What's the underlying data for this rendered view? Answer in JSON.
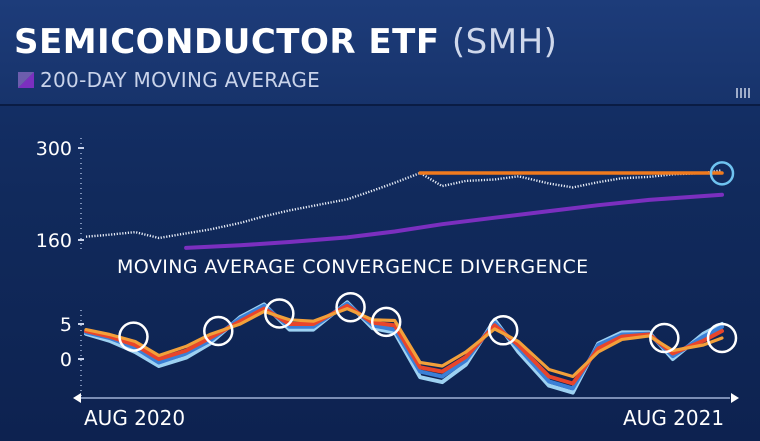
{
  "header": {
    "title": "SEMICONDUCTOR ETF",
    "ticker": "(SMH)",
    "legend_label": "200-DAY MOVING AVERAGE",
    "legend_color": "#7b2fbf"
  },
  "colors": {
    "price": "#e9eef8",
    "moving_average": "#7b2fbf",
    "resistance": "#f07a1e",
    "macd_orange": "#f2a03a",
    "macd_red": "#e8452b",
    "macd_blue": "#3b7fd6",
    "macd_lightblue": "#9dd1f2",
    "circles": "#ffffff"
  },
  "chart_data": [
    {
      "type": "line",
      "panel": "price",
      "x_range": [
        "AUG 2020",
        "AUG 2021"
      ],
      "ylim": [
        135,
        305
      ],
      "y_ticks": [
        "300",
        "160"
      ],
      "y_tick_values": [
        300,
        160
      ],
      "series": [
        {
          "key": "price",
          "style": "dotted",
          "x": [
            "2020-08-03",
            "2020-08-17",
            "2020-09-01",
            "2020-09-15",
            "2020-10-01",
            "2020-10-15",
            "2020-11-02",
            "2020-11-16",
            "2020-12-01",
            "2020-12-15",
            "2021-01-04",
            "2021-01-19",
            "2021-02-01",
            "2021-02-16",
            "2021-03-01",
            "2021-03-15",
            "2021-04-01",
            "2021-04-15",
            "2021-05-03",
            "2021-05-17",
            "2021-06-01",
            "2021-06-15",
            "2021-07-01",
            "2021-07-15",
            "2021-08-02",
            "2021-08-13"
          ],
          "values": [
            165,
            168,
            172,
            163,
            170,
            176,
            186,
            196,
            205,
            212,
            222,
            235,
            247,
            262,
            242,
            250,
            252,
            257,
            246,
            240,
            248,
            254,
            256,
            260,
            262,
            266
          ]
        },
        {
          "name": "200-DAY MOVING AVERAGE",
          "key": "moving_average",
          "x": [
            "2020-10-01",
            "2020-11-02",
            "2020-12-01",
            "2021-01-04",
            "2021-02-01",
            "2021-03-01",
            "2021-04-01",
            "2021-05-03",
            "2021-06-01",
            "2021-07-01",
            "2021-08-13"
          ],
          "values": [
            148,
            152,
            157,
            164,
            173,
            184,
            194,
            204,
            213,
            221,
            229
          ]
        },
        {
          "key": "resistance",
          "x": [
            "2021-02-16",
            "2021-08-13"
          ],
          "values": [
            262,
            262
          ]
        }
      ]
    },
    {
      "type": "line",
      "panel": "macd",
      "title": "MOVING AVERAGE CONVERGENCE DIVERGENCE",
      "x_range": [
        "AUG 2020",
        "AUG 2021"
      ],
      "x_tick_labels": [
        "AUG 2020",
        "AUG 2021"
      ],
      "ylim": [
        -5,
        9
      ],
      "y_ticks": [
        "5",
        "0"
      ],
      "y_tick_values": [
        5,
        0
      ],
      "x": [
        "2020-08-03",
        "2020-08-17",
        "2020-09-01",
        "2020-09-15",
        "2020-10-01",
        "2020-10-15",
        "2020-11-02",
        "2020-11-16",
        "2020-12-01",
        "2020-12-15",
        "2021-01-04",
        "2021-01-19",
        "2021-02-01",
        "2021-02-16",
        "2021-03-01",
        "2021-03-15",
        "2021-04-01",
        "2021-04-15",
        "2021-05-03",
        "2021-05-17",
        "2021-06-01",
        "2021-06-15",
        "2021-07-01",
        "2021-07-15",
        "2021-08-02",
        "2021-08-13"
      ],
      "series": [
        {
          "key": "macd_orange",
          "values": [
            4.2,
            3.5,
            2.5,
            0.5,
            1.8,
            3.5,
            5.0,
            6.8,
            5.6,
            5.4,
            7.2,
            5.6,
            5.5,
            -0.5,
            -1.0,
            1.0,
            4.3,
            2.5,
            -1.5,
            -2.5,
            1.0,
            2.8,
            3.3,
            1.2,
            2.0,
            3.0
          ]
        },
        {
          "key": "macd_red",
          "values": [
            4.0,
            3.2,
            2.0,
            0.0,
            1.2,
            3.0,
            5.4,
            7.2,
            5.0,
            5.0,
            7.6,
            5.2,
            4.8,
            -1.2,
            -1.8,
            0.3,
            4.8,
            2.0,
            -2.5,
            -3.5,
            1.5,
            3.2,
            3.5,
            0.8,
            2.6,
            4.0
          ]
        },
        {
          "key": "macd_blue",
          "values": [
            3.8,
            3.0,
            1.6,
            -0.5,
            0.8,
            2.6,
            5.8,
            7.6,
            4.6,
            4.6,
            7.9,
            4.8,
            4.2,
            -1.8,
            -2.5,
            -0.2,
            5.2,
            1.6,
            -3.2,
            -4.2,
            2.0,
            3.5,
            3.6,
            0.4,
            3.2,
            4.6
          ]
        },
        {
          "key": "macd_lightblue",
          "values": [
            3.6,
            2.6,
            1.0,
            -1.0,
            0.2,
            2.2,
            6.0,
            7.8,
            4.2,
            4.2,
            8.1,
            4.4,
            3.8,
            -2.6,
            -3.3,
            -0.8,
            5.6,
            1.0,
            -3.8,
            -4.8,
            2.2,
            3.8,
            3.8,
            0.0,
            3.6,
            5.0
          ]
        }
      ],
      "highlight_circles_x": [
        "2020-08-31",
        "2020-10-20",
        "2020-11-25",
        "2021-01-06",
        "2021-01-27",
        "2021-04-06",
        "2021-07-10",
        "2021-08-13"
      ],
      "highlight_circles_y": [
        3.2,
        4.0,
        6.5,
        7.4,
        5.3,
        4.1,
        3.0,
        3.0
      ]
    }
  ]
}
